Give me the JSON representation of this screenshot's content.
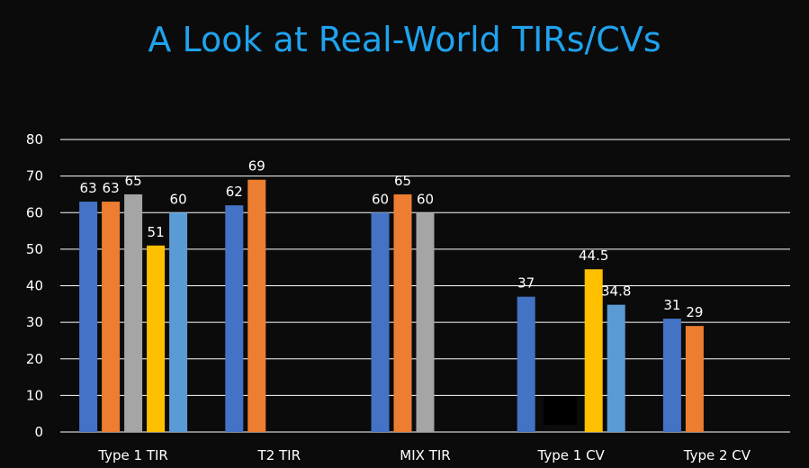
{
  "title": "A Look at Real-World TIRs/CVs",
  "chart_data": {
    "type": "bar",
    "title": "A Look at Real-World TIRs/CVs",
    "xlabel": "",
    "ylabel": "",
    "ylim": [
      0,
      80
    ],
    "yticks": [
      0,
      10,
      20,
      30,
      40,
      50,
      60,
      70,
      80
    ],
    "grid": true,
    "categories": [
      "Type 1 TIR",
      "T2 TIR",
      "MIX TIR",
      "Type 1 CV",
      "Type 2 CV"
    ],
    "series": [
      {
        "color": "#4472c4",
        "values": [
          63,
          62,
          60,
          37,
          31
        ]
      },
      {
        "color": "#ed7d31",
        "values": [
          63,
          69,
          65,
          null,
          29
        ]
      },
      {
        "color": "#a5a5a5",
        "values": [
          65,
          null,
          60,
          null,
          null
        ]
      },
      {
        "color": "#ffc000",
        "values": [
          51,
          null,
          null,
          44.5,
          null
        ]
      },
      {
        "color": "#5b9bd5",
        "values": [
          60,
          null,
          null,
          34.8,
          null
        ]
      }
    ],
    "data_labels": [
      [
        "63",
        "62",
        "60",
        "37",
        "31"
      ],
      [
        "63",
        "69",
        "65",
        null,
        "29"
      ],
      [
        "65",
        null,
        "60",
        null,
        null
      ],
      [
        "51",
        null,
        null,
        "44.5",
        null
      ],
      [
        "60",
        null,
        null,
        "34.8",
        null
      ]
    ]
  }
}
